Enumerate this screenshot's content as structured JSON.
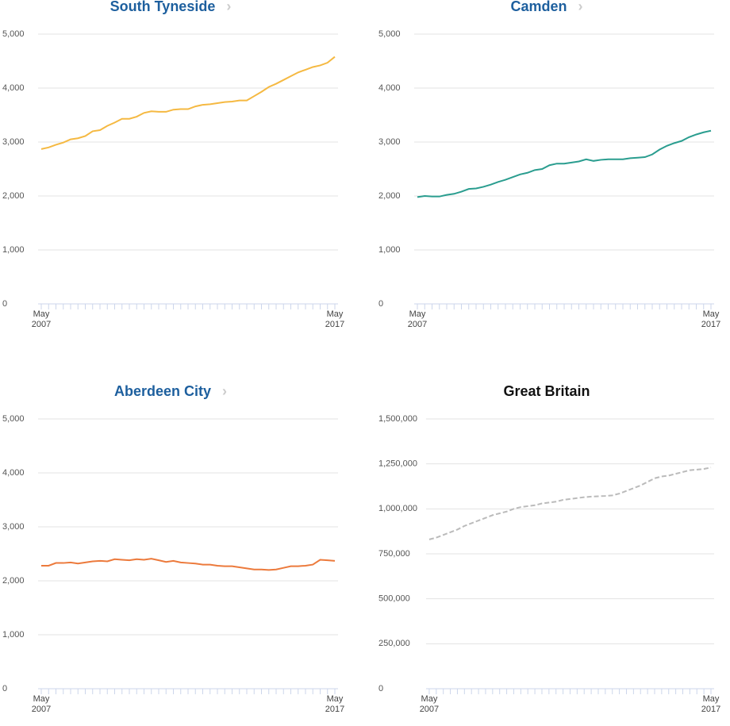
{
  "chart_data": [
    {
      "type": "line",
      "title": "South Tyneside",
      "title_color": "#1d5f9e",
      "color": "#f5b942",
      "dash": false,
      "grid": true,
      "categories": [
        "May 2007",
        null,
        null,
        null,
        null,
        null,
        null,
        null,
        null,
        null,
        null,
        null,
        null,
        null,
        null,
        null,
        null,
        null,
        null,
        null,
        null,
        null,
        null,
        null,
        null,
        null,
        null,
        null,
        null,
        null,
        null,
        null,
        null,
        null,
        null,
        null,
        null,
        null,
        null,
        null,
        "May 2017"
      ],
      "values": [
        2870,
        2900,
        2950,
        2990,
        3050,
        3070,
        3110,
        3200,
        3220,
        3300,
        3360,
        3430,
        3430,
        3470,
        3540,
        3570,
        3560,
        3560,
        3600,
        3610,
        3610,
        3660,
        3690,
        3700,
        3720,
        3740,
        3750,
        3770,
        3770,
        3850,
        3930,
        4020,
        4080,
        4150,
        4220,
        4290,
        4340,
        4390,
        4420,
        4470,
        4580
      ],
      "ylim": [
        0,
        5000
      ],
      "yticks": [
        0,
        {
          "value": 1000,
          "label": "1,000"
        },
        {
          "value": 2000,
          "label": "2,000"
        },
        {
          "value": 3000,
          "label": "3,000"
        },
        {
          "value": 4000,
          "label": "4,000"
        },
        {
          "value": 5000,
          "label": "5,000"
        }
      ]
    },
    {
      "type": "line",
      "title": "Camden",
      "title_color": "#1d5f9e",
      "color": "#2a9d8f",
      "dash": false,
      "grid": true,
      "categories": [
        "May 2007",
        null,
        null,
        null,
        null,
        null,
        null,
        null,
        null,
        null,
        null,
        null,
        null,
        null,
        null,
        null,
        null,
        null,
        null,
        null,
        null,
        null,
        null,
        null,
        null,
        null,
        null,
        null,
        null,
        null,
        null,
        null,
        null,
        null,
        null,
        null,
        null,
        null,
        null,
        null,
        "May 2017"
      ],
      "values": [
        1980,
        2000,
        1990,
        1990,
        2020,
        2040,
        2080,
        2130,
        2140,
        2170,
        2210,
        2260,
        2300,
        2350,
        2400,
        2430,
        2480,
        2500,
        2570,
        2600,
        2600,
        2620,
        2640,
        2680,
        2650,
        2670,
        2680,
        2680,
        2680,
        2700,
        2710,
        2720,
        2770,
        2860,
        2930,
        2980,
        3020,
        3090,
        3140,
        3180,
        3210
      ],
      "ylim": [
        0,
        5000
      ],
      "yticks": [
        0,
        {
          "value": 1000,
          "label": "1,000"
        },
        {
          "value": 2000,
          "label": "2,000"
        },
        {
          "value": 3000,
          "label": "3,000"
        },
        {
          "value": 4000,
          "label": "4,000"
        },
        {
          "value": 5000,
          "label": "5,000"
        }
      ]
    },
    {
      "type": "line",
      "title": "Aberdeen City",
      "title_color": "#1d5f9e",
      "color": "#ec7a3c",
      "dash": false,
      "grid": true,
      "categories": [
        "May 2007",
        null,
        null,
        null,
        null,
        null,
        null,
        null,
        null,
        null,
        null,
        null,
        null,
        null,
        null,
        null,
        null,
        null,
        null,
        null,
        null,
        null,
        null,
        null,
        null,
        null,
        null,
        null,
        null,
        null,
        null,
        null,
        null,
        null,
        null,
        null,
        null,
        null,
        null,
        null,
        "May 2017"
      ],
      "values": [
        2280,
        2280,
        2330,
        2330,
        2340,
        2320,
        2340,
        2360,
        2370,
        2360,
        2400,
        2390,
        2380,
        2400,
        2390,
        2410,
        2380,
        2350,
        2370,
        2340,
        2330,
        2320,
        2300,
        2300,
        2280,
        2270,
        2270,
        2250,
        2230,
        2210,
        2210,
        2200,
        2210,
        2240,
        2270,
        2270,
        2280,
        2300,
        2390,
        2380,
        2370
      ],
      "ylim": [
        0,
        5000
      ],
      "yticks": [
        0,
        {
          "value": 1000,
          "label": "1,000"
        },
        {
          "value": 2000,
          "label": "2,000"
        },
        {
          "value": 3000,
          "label": "3,000"
        },
        {
          "value": 4000,
          "label": "4,000"
        },
        {
          "value": 5000,
          "label": "5,000"
        }
      ]
    },
    {
      "type": "line",
      "title": "Great Britain",
      "title_color": "#111111",
      "color": "#bbbbbb",
      "dash": true,
      "grid": true,
      "categories": [
        "May 2007",
        null,
        null,
        null,
        null,
        null,
        null,
        null,
        null,
        null,
        null,
        null,
        null,
        null,
        null,
        null,
        null,
        null,
        null,
        null,
        null,
        null,
        null,
        null,
        null,
        null,
        null,
        null,
        null,
        null,
        null,
        null,
        null,
        null,
        null,
        null,
        null,
        null,
        null,
        null,
        "May 2017"
      ],
      "values": [
        830000,
        840000,
        855000,
        870000,
        885000,
        905000,
        920000,
        935000,
        950000,
        965000,
        975000,
        985000,
        1000000,
        1010000,
        1015000,
        1020000,
        1030000,
        1035000,
        1040000,
        1050000,
        1055000,
        1060000,
        1065000,
        1068000,
        1070000,
        1072000,
        1075000,
        1085000,
        1100000,
        1115000,
        1130000,
        1150000,
        1170000,
        1180000,
        1185000,
        1195000,
        1205000,
        1215000,
        1218000,
        1222000,
        1230000
      ],
      "ylim": [
        0,
        1500000
      ],
      "yticks": [
        0,
        {
          "value": 250000,
          "label": "250,000"
        },
        {
          "value": 500000,
          "label": "500,000"
        },
        {
          "value": 750000,
          "label": "750,000"
        },
        {
          "value": 1000000,
          "label": "1,000,000"
        },
        {
          "value": 1250000,
          "label": "1,250,000"
        },
        {
          "value": 1500000,
          "label": "1,500,000"
        }
      ]
    }
  ]
}
